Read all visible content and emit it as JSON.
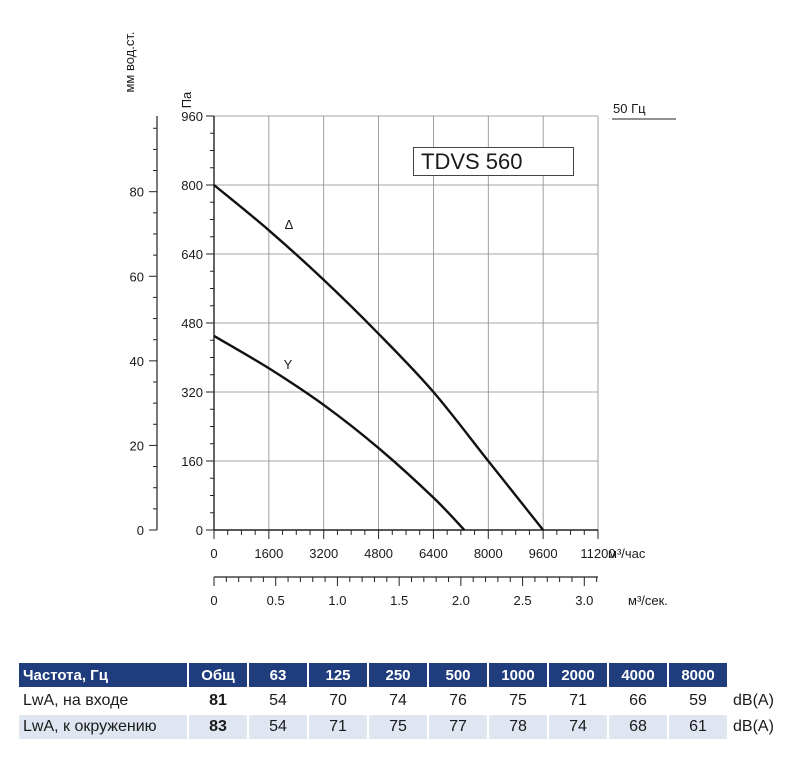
{
  "chart_data": {
    "type": "line",
    "title": "TDVS 560",
    "frequency_label": "50 Гц",
    "y_left_label": "мм вод.ст.",
    "y_label": "Па",
    "x_label": "м³/час",
    "x2_label": "м³/сек.",
    "y_ticks": [
      "960",
      "800",
      "640",
      "480",
      "320",
      "160",
      "0"
    ],
    "y_left_ticks": [
      "80",
      "60",
      "40",
      "20",
      "0"
    ],
    "x_ticks": [
      "0",
      "1600",
      "3200",
      "4800",
      "6400",
      "8000",
      "9600",
      "11200"
    ],
    "x2_ticks": [
      "0",
      "0.5",
      "1.0",
      "1.5",
      "2.0",
      "2.5",
      "3.0"
    ],
    "xlim": [
      0,
      11200
    ],
    "ylim": [
      0,
      960
    ],
    "x2lim": [
      0,
      3.111
    ],
    "y_left_lim": [
      0,
      97.9
    ],
    "grid": true,
    "series": [
      {
        "name": "Δ",
        "x": [
          0,
          1600,
          3200,
          4800,
          6400,
          8000,
          9600
        ],
        "y": [
          800,
          695,
          580,
          455,
          320,
          160,
          0
        ]
      },
      {
        "name": "Y",
        "x": [
          0,
          1600,
          3200,
          4800,
          6400,
          7300
        ],
        "y": [
          450,
          375,
          290,
          190,
          75,
          0
        ]
      }
    ]
  },
  "noise_table": {
    "headers": [
      "Частота, Гц",
      "Общ",
      "63",
      "125",
      "250",
      "500",
      "1000",
      "2000",
      "4000",
      "8000"
    ],
    "rows": [
      {
        "label": "LwA, на входе",
        "values": [
          "81",
          "54",
          "70",
          "74",
          "76",
          "75",
          "71",
          "66",
          "59"
        ],
        "unit": "dB(A)"
      },
      {
        "label": "LwA, к окружению",
        "values": [
          "83",
          "54",
          "71",
          "75",
          "77",
          "78",
          "74",
          "68",
          "61"
        ],
        "unit": "dB(A)"
      }
    ]
  }
}
